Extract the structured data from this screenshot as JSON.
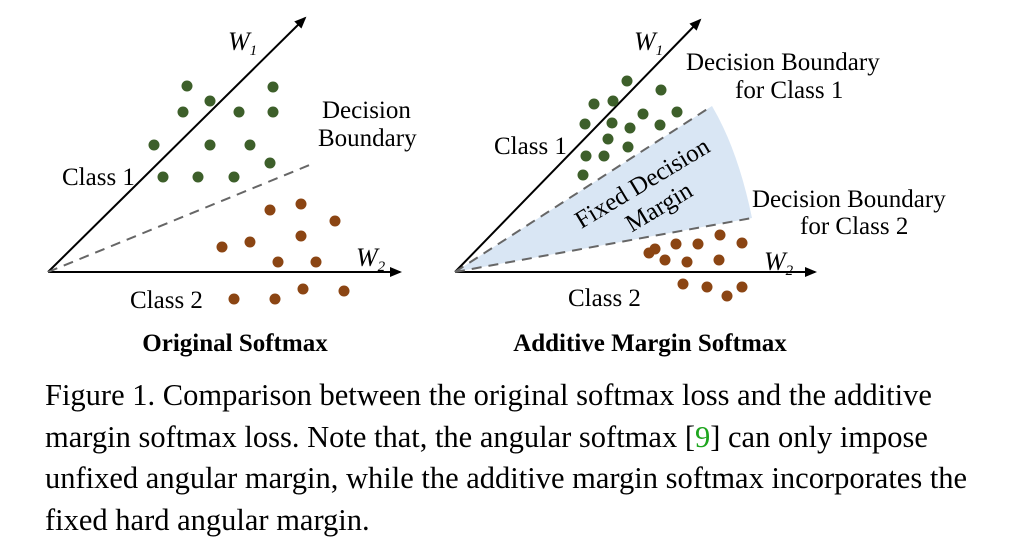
{
  "panels": [
    {
      "title": "Original Softmax",
      "w1_label": "W",
      "w1_sub": "1",
      "w2_label": "W",
      "w2_sub": "2",
      "boundary_label_line1": "Decision",
      "boundary_label_line2": "Boundary",
      "class1_label": "Class 1",
      "class2_label": "Class 2"
    },
    {
      "title": "Additive Margin Softmax",
      "w1_label": "W",
      "w1_sub": "1",
      "w2_label": "W",
      "w2_sub": "2",
      "boundary1_label_line1": "Decision Boundary",
      "boundary1_label_line2": "for Class 1",
      "boundary2_label_line1": "Decision Boundary",
      "boundary2_label_line2": "for Class 2",
      "margin_label_line1": "Fixed Decision",
      "margin_label_line2": "Margin",
      "class1_label": "Class 1",
      "class2_label": "Class 2"
    }
  ],
  "colors": {
    "class1": "#3d5f2a",
    "class2": "#8b4513",
    "margin_fill": "#d9e6f4",
    "boundary_line": "#666666",
    "citation": "#1ea51e"
  },
  "caption": {
    "before_ref": "Figure 1. Comparison between the original softmax loss and the additive margin softmax loss. Note that, the angular softmax [",
    "ref": "9",
    "after_ref": "] can only impose unfixed angular margin, while the additive margin softmax incorporates the fixed hard angular margin."
  }
}
